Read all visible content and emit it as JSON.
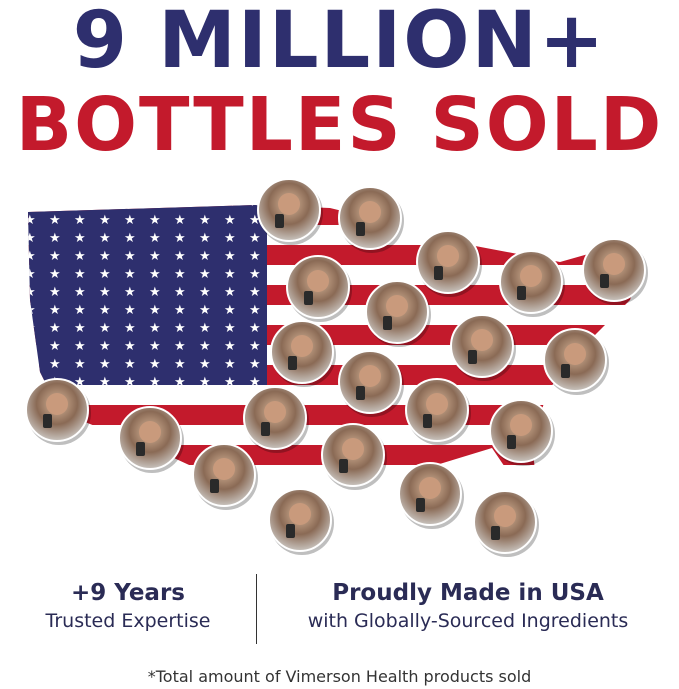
{
  "headline": {
    "line1": "9 MILLION+",
    "line2": "BOTTLES SOLD"
  },
  "colors": {
    "navy": "#2e2f6e",
    "red": "#c31a2c",
    "text": "#2a2b55"
  },
  "map": {
    "description_icon": "usa-flag-map",
    "customer_photos": 21
  },
  "stats": [
    {
      "title": "+9 Years",
      "subtitle": "Trusted Expertise"
    },
    {
      "title": "Proudly Made in USA",
      "subtitle": "with Globally-Sourced Ingredients"
    }
  ],
  "footnote": "*Total amount of Vimerson Health products sold"
}
